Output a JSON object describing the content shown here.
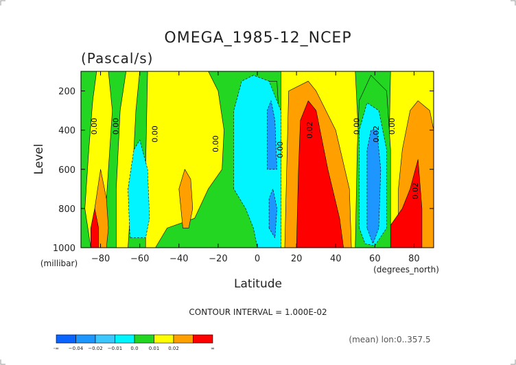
{
  "chart_data": {
    "type": "heatmap",
    "title": "OMEGA_1985-12_NCEP",
    "subtitle": "(Pascal/s)",
    "xlabel": "Latitude",
    "ylabel": "Level",
    "x_unit": "(degrees_north)",
    "y_unit": "(millibar)",
    "xlim": [
      -90,
      90
    ],
    "ylim": [
      1000,
      100
    ],
    "x_ticks": [
      -80,
      -60,
      -40,
      -20,
      0,
      20,
      40,
      60,
      80
    ],
    "x_tick_labels": [
      "−80",
      "−60",
      "−40",
      "−20",
      "0",
      "20",
      "40",
      "60",
      "80"
    ],
    "y_ticks": [
      200,
      400,
      600,
      800,
      1000
    ],
    "y_tick_labels": [
      "200",
      "400",
      "600",
      "800",
      "1000"
    ],
    "levels": [
      {
        "label": "-∞",
        "color": "#0a64ff"
      },
      {
        "label": "−0.04",
        "color": "#1e96ff"
      },
      {
        "label": "−0.02",
        "color": "#3cc8ff"
      },
      {
        "label": "−0.01",
        "color": "#00f5ff"
      },
      {
        "label": "0.0",
        "color": "#22d622"
      },
      {
        "label": "0.01",
        "color": "#ffff00"
      },
      {
        "label": "0.02",
        "color": "#ffa000"
      },
      {
        "label": "∞",
        "color": "#ff0000"
      }
    ],
    "colorbar_labels": [
      "-∞",
      "−0.04",
      "−0.02",
      "−0.01",
      "0.0",
      "0.01",
      "0.02",
      "∞"
    ],
    "background_color": "#22d622",
    "regions": [
      {
        "level": 0.01,
        "label": "yellow band near -80",
        "points": [
          [
            -85,
            1000
          ],
          [
            -88,
            800
          ],
          [
            -86,
            500
          ],
          [
            -84,
            250
          ],
          [
            -82,
            100
          ],
          [
            -76,
            100
          ],
          [
            -74,
            300
          ],
          [
            -76,
            600
          ],
          [
            -78,
            900
          ],
          [
            -80,
            1000
          ]
        ]
      },
      {
        "level": 0.01,
        "label": "yellow band -70 to -60",
        "points": [
          [
            -72,
            1000
          ],
          [
            -72,
            700
          ],
          [
            -70,
            300
          ],
          [
            -67,
            100
          ],
          [
            -60,
            100
          ],
          [
            -62,
            300
          ],
          [
            -64,
            700
          ],
          [
            -66,
            1000
          ]
        ]
      },
      {
        "level": 0.01,
        "label": "yellow band -58 to -18",
        "points": [
          [
            -57,
            1000
          ],
          [
            -57,
            600
          ],
          [
            -56,
            100
          ],
          [
            -25,
            100
          ],
          [
            -20,
            200
          ],
          [
            -17,
            400
          ],
          [
            -18,
            600
          ],
          [
            -25,
            700
          ],
          [
            -32,
            850
          ],
          [
            -46,
            900
          ],
          [
            -52,
            1000
          ]
        ]
      },
      {
        "level": 0.01,
        "label": "yellow band 10 to 50",
        "points": [
          [
            10,
            1000
          ],
          [
            12,
            600
          ],
          [
            12,
            100
          ],
          [
            50,
            100
          ],
          [
            52,
            500
          ],
          [
            50,
            1000
          ]
        ]
      },
      {
        "level": 0.01,
        "label": "yellow band 66 to 90",
        "points": [
          [
            66,
            1000
          ],
          [
            67,
            600
          ],
          [
            68,
            100
          ],
          [
            90,
            100
          ],
          [
            90,
            1000
          ]
        ]
      },
      {
        "level": 0.02,
        "label": "orange -82 to -77",
        "points": [
          [
            -82,
            1000
          ],
          [
            -83,
            800
          ],
          [
            -80,
            600
          ],
          [
            -77,
            750
          ],
          [
            -76,
            900
          ],
          [
            -77,
            1000
          ]
        ]
      },
      {
        "level": 0.02,
        "label": "orange -40 to -34",
        "points": [
          [
            -38,
            900
          ],
          [
            -40,
            700
          ],
          [
            -37,
            600
          ],
          [
            -34,
            650
          ],
          [
            -33,
            800
          ],
          [
            -35,
            900
          ]
        ]
      },
      {
        "level": 0.02,
        "label": "orange 14 to 48",
        "points": [
          [
            14,
            1000
          ],
          [
            15,
            600
          ],
          [
            16,
            200
          ],
          [
            26,
            150
          ],
          [
            30,
            200
          ],
          [
            40,
            400
          ],
          [
            47,
            700
          ],
          [
            48,
            1000
          ]
        ]
      },
      {
        "level": 0.02,
        "label": "orange 72 to 90",
        "points": [
          [
            72,
            1000
          ],
          [
            72,
            700
          ],
          [
            74,
            500
          ],
          [
            78,
            300
          ],
          [
            82,
            250
          ],
          [
            88,
            300
          ],
          [
            90,
            400
          ],
          [
            90,
            1000
          ]
        ]
      },
      {
        "level": "inf",
        "label": "red -85 to -80",
        "points": [
          [
            -85,
            1000
          ],
          [
            -85,
            900
          ],
          [
            -83,
            800
          ],
          [
            -81,
            900
          ],
          [
            -81,
            1000
          ]
        ]
      },
      {
        "level": "inf",
        "label": "red 20 to 44",
        "points": [
          [
            20,
            1000
          ],
          [
            21,
            600
          ],
          [
            22,
            350
          ],
          [
            26,
            250
          ],
          [
            30,
            300
          ],
          [
            36,
            600
          ],
          [
            42,
            850
          ],
          [
            44,
            1000
          ]
        ]
      },
      {
        "level": "inf",
        "label": "red 66 to 84",
        "points": [
          [
            66,
            1000
          ],
          [
            67,
            900
          ],
          [
            74,
            800
          ],
          [
            78,
            700
          ],
          [
            82,
            550
          ],
          [
            84,
            800
          ],
          [
            84,
            1000
          ]
        ]
      },
      {
        "level": 0.0,
        "label": "green gap 3 to 12",
        "points": [
          [
            3,
            1000
          ],
          [
            3,
            400
          ],
          [
            5,
            150
          ],
          [
            10,
            150
          ],
          [
            12,
            500
          ],
          [
            12,
            1000
          ]
        ]
      },
      {
        "level": 0.0,
        "label": "green gap 50 to 68",
        "points": [
          [
            50,
            1000
          ],
          [
            51,
            500
          ],
          [
            52,
            250
          ],
          [
            58,
            120
          ],
          [
            66,
            200
          ],
          [
            68,
            500
          ],
          [
            68,
            1000
          ]
        ]
      },
      {
        "level": -0.01,
        "label": "cyan -66 to -54",
        "points": [
          [
            -65,
            950
          ],
          [
            -66,
            700
          ],
          [
            -63,
            500
          ],
          [
            -60,
            450
          ],
          [
            -56,
            600
          ],
          [
            -55,
            850
          ],
          [
            -57,
            950
          ]
        ]
      },
      {
        "level": -0.01,
        "label": "cyan -12 to 12",
        "points": [
          [
            -12,
            700
          ],
          [
            -12,
            300
          ],
          [
            -8,
            150
          ],
          [
            -2,
            120
          ],
          [
            6,
            150
          ],
          [
            12,
            300
          ],
          [
            12,
            1000
          ],
          [
            0,
            1000
          ],
          [
            -2,
            900
          ],
          [
            -6,
            800
          ]
        ]
      },
      {
        "level": -0.01,
        "label": "cyan 52 to 66",
        "points": [
          [
            52,
            900
          ],
          [
            52,
            400
          ],
          [
            56,
            260
          ],
          [
            62,
            300
          ],
          [
            66,
            500
          ],
          [
            66,
            900
          ],
          [
            60,
            990
          ],
          [
            55,
            980
          ]
        ]
      },
      {
        "level": -0.02,
        "label": "blue 5 to 10",
        "points": [
          [
            5,
            600
          ],
          [
            5,
            300
          ],
          [
            7,
            250
          ],
          [
            9,
            350
          ],
          [
            10,
            600
          ]
        ]
      },
      {
        "level": -0.02,
        "label": "blue 6 to 10 low",
        "points": [
          [
            6,
            900
          ],
          [
            6,
            750
          ],
          [
            8,
            700
          ],
          [
            10,
            800
          ],
          [
            9,
            950
          ]
        ]
      },
      {
        "level": -0.02,
        "label": "blue 56 to 63",
        "points": [
          [
            56,
            900
          ],
          [
            56,
            500
          ],
          [
            58,
            400
          ],
          [
            61,
            400
          ],
          [
            63,
            600
          ],
          [
            62,
            900
          ],
          [
            59,
            980
          ]
        ]
      }
    ],
    "contour_labels": [
      {
        "text": "0.00",
        "x": -82,
        "y": 380
      },
      {
        "text": "0.00",
        "x": -71,
        "y": 380
      },
      {
        "text": "0.00",
        "x": -51,
        "y": 420
      },
      {
        "text": "0.00",
        "x": -20,
        "y": 470
      },
      {
        "text": "0.00",
        "x": 13,
        "y": 500
      },
      {
        "text": "0.02",
        "x": 28,
        "y": 400
      },
      {
        "text": "0.00",
        "x": 52,
        "y": 380
      },
      {
        "text": "0.02",
        "x": 62,
        "y": 420
      },
      {
        "text": "0.00",
        "x": 70,
        "y": 380
      },
      {
        "text": "0.02",
        "x": 82,
        "y": 710
      }
    ],
    "annotations": {
      "contour_interval": "CONTOUR INTERVAL = 1.000E-02",
      "mean": "(mean) lon:0..357.5"
    }
  }
}
